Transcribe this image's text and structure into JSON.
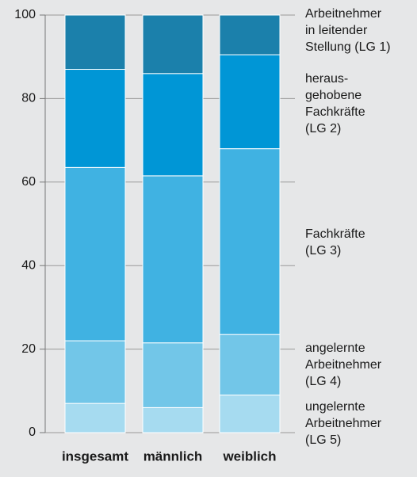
{
  "chart_data": {
    "type": "stacked_bar",
    "categories": [
      "insgesamt",
      "männlich",
      "weiblich"
    ],
    "series": [
      {
        "name": "ungelernte\nArbeitnehmer\n(LG 5)",
        "color": "#a6dbf0",
        "values": [
          7,
          6,
          9
        ]
      },
      {
        "name": "angelernte\nArbeitnehmer\n(LG 4)",
        "color": "#72c6e8",
        "values": [
          15,
          15.5,
          14.5
        ]
      },
      {
        "name": "Fachkräfte\n(LG 3)",
        "color": "#40b2e2",
        "values": [
          41.5,
          40,
          44.5
        ]
      },
      {
        "name": "heraus-\ngehobene\nFachkräfte\n(LG 2)",
        "color": "#0096d6",
        "values": [
          23.5,
          24.5,
          22.5
        ]
      },
      {
        "name": "Arbeitnehmer\nin leitender\nStellung (LG 1)",
        "color": "#1b80ab",
        "values": [
          13,
          14,
          9.5
        ]
      }
    ],
    "ylim": [
      0,
      100
    ],
    "yticks": [
      0,
      20,
      40,
      60,
      80,
      100
    ],
    "grid": true
  }
}
